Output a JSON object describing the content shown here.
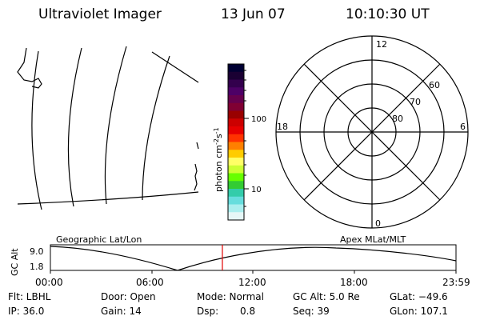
{
  "header": {
    "title": "Ultraviolet Imager",
    "date": "13 Jun 07",
    "time": "10:10:30 UT"
  },
  "colorbar": {
    "label": "photon cm",
    "label_sup1": "-2",
    "label_mid": "s",
    "label_sup2": "-1",
    "tick_labels": [
      "100",
      "10"
    ],
    "colors": [
      "#000033",
      "#1a0033",
      "#33004d",
      "#4d0066",
      "#66004d",
      "#800033",
      "#990000",
      "#cc0000",
      "#e60000",
      "#ff3300",
      "#ff8000",
      "#ffcc00",
      "#ffff66",
      "#ccff33",
      "#66ff00",
      "#33cc33",
      "#33ccaa",
      "#66dddd",
      "#aaeeee",
      "#e6f7f7"
    ]
  },
  "polar_plot": {
    "lat_labels": [
      "60",
      "70",
      "80"
    ],
    "mlt_labels": [
      "12",
      "18",
      "6",
      "0"
    ]
  },
  "orbit_plot": {
    "left_title": "Geographic Lat/Lon",
    "right_title": "Apex MLat/MLT",
    "y_axis_label": "GC Alt",
    "y_ticks": [
      "9.0",
      "1.8"
    ],
    "x_ticks": [
      "00:00",
      "06:00",
      "12:00",
      "18:00",
      "23:59"
    ],
    "current_time_fraction": 0.424
  },
  "status": {
    "flt": "Flt: LBHL",
    "ip": "IP: 36.0",
    "door": "Door: Open",
    "gain": "Gain: 14",
    "mode": "Mode: Normal",
    "dsp_label": "Dsp:",
    "dsp_value": "0.8",
    "gc_alt": "GC Alt: 5.0 Re",
    "seq": "Seq: 39",
    "glat": "GLat: −49.6",
    "glon": "GLon: 107.1"
  }
}
